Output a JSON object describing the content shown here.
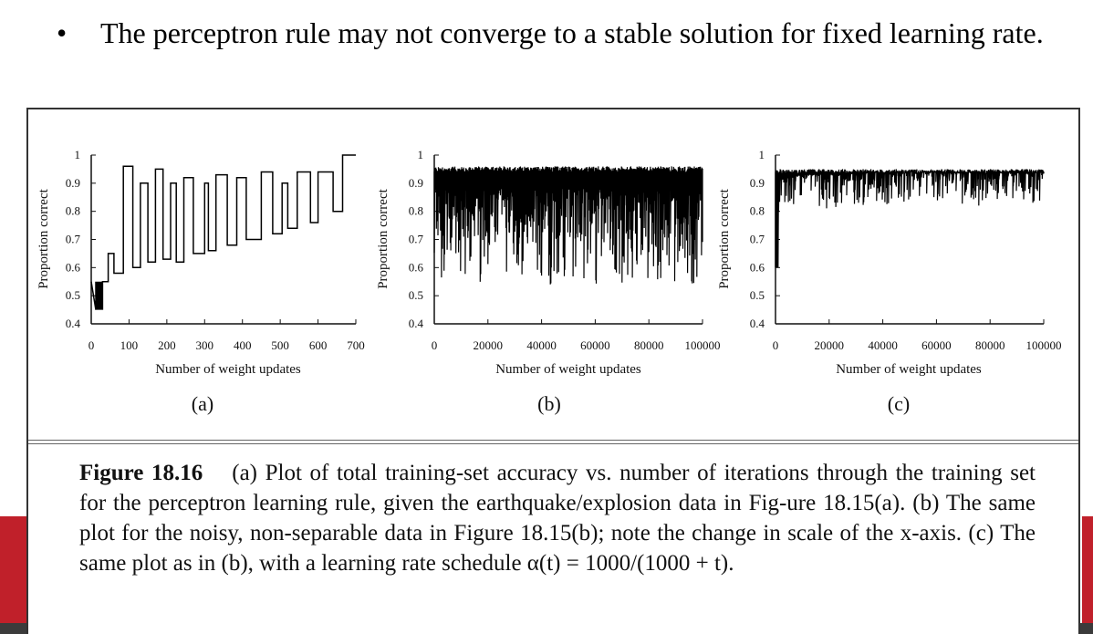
{
  "slide": {
    "bullet_symbol": "•",
    "bullet_text": "The perceptron rule may not converge to a stable solution for fixed learning rate."
  },
  "chart_data": [
    {
      "type": "line",
      "panel_label": "(a)",
      "xlabel": "Number of weight updates",
      "ylabel": "Proportion correct",
      "x_ticks": [
        "0",
        "100",
        "200",
        "300",
        "400",
        "500",
        "600",
        "700"
      ],
      "y_ticks": [
        "0.4",
        "0.5",
        "0.6",
        "0.7",
        "0.8",
        "0.9",
        "1"
      ],
      "xlim": [
        0,
        700
      ],
      "ylim": [
        0.4,
        1.0
      ],
      "series": [
        {
          "name": "training-set accuracy",
          "x": [
            0,
            12,
            12,
            14,
            14,
            16,
            16,
            18,
            18,
            20,
            20,
            22,
            22,
            24,
            24,
            26,
            26,
            28,
            28,
            30,
            30,
            45,
            45,
            60,
            60,
            85,
            85,
            110,
            110,
            130,
            130,
            150,
            150,
            170,
            170,
            190,
            190,
            210,
            210,
            225,
            225,
            245,
            245,
            270,
            270,
            300,
            300,
            310,
            310,
            330,
            330,
            360,
            360,
            385,
            385,
            410,
            410,
            450,
            450,
            480,
            480,
            505,
            505,
            520,
            520,
            545,
            545,
            580,
            580,
            600,
            600,
            640,
            640,
            665,
            665,
            700
          ],
          "y": [
            0.55,
            0.45,
            0.55,
            0.45,
            0.55,
            0.45,
            0.55,
            0.45,
            0.55,
            0.45,
            0.55,
            0.45,
            0.55,
            0.45,
            0.55,
            0.45,
            0.55,
            0.45,
            0.55,
            0.45,
            0.55,
            0.55,
            0.65,
            0.65,
            0.58,
            0.58,
            0.96,
            0.96,
            0.6,
            0.6,
            0.9,
            0.9,
            0.62,
            0.62,
            0.95,
            0.95,
            0.63,
            0.63,
            0.9,
            0.9,
            0.62,
            0.62,
            0.92,
            0.92,
            0.65,
            0.65,
            0.9,
            0.9,
            0.66,
            0.66,
            0.93,
            0.93,
            0.68,
            0.68,
            0.92,
            0.92,
            0.7,
            0.7,
            0.94,
            0.94,
            0.72,
            0.72,
            0.9,
            0.9,
            0.74,
            0.74,
            0.94,
            0.94,
            0.76,
            0.76,
            0.94,
            0.94,
            0.8,
            0.8,
            1.0,
            1.0
          ]
        }
      ]
    },
    {
      "type": "line",
      "panel_label": "(b)",
      "xlabel": "Number of weight updates",
      "ylabel": "Proportion correct",
      "x_ticks": [
        "0",
        "20000",
        "40000",
        "60000",
        "80000",
        "100000"
      ],
      "y_ticks": [
        "0.4",
        "0.5",
        "0.6",
        "0.7",
        "0.8",
        "0.9",
        "1"
      ],
      "xlim": [
        0,
        100000
      ],
      "ylim": [
        0.4,
        1.0
      ],
      "series": [
        {
          "name": "training-set accuracy",
          "x": [
            0,
            10000,
            20000,
            30000,
            40000,
            50000,
            60000,
            70000,
            80000,
            90000,
            100000
          ],
          "y": [
            0.85,
            0.9,
            0.88,
            0.92,
            0.87,
            0.93,
            0.9,
            0.91,
            0.88,
            0.92,
            0.9
          ]
        }
      ]
    },
    {
      "type": "line",
      "panel_label": "(c)",
      "xlabel": "Number of weight updates",
      "ylabel": "Proportion correct",
      "x_ticks": [
        "0",
        "20000",
        "40000",
        "60000",
        "80000",
        "100000"
      ],
      "y_ticks": [
        "0.4",
        "0.5",
        "0.6",
        "0.7",
        "0.8",
        "0.9",
        "1"
      ],
      "xlim": [
        0,
        100000
      ],
      "ylim": [
        0.4,
        1.0
      ],
      "series": [
        {
          "name": "training-set accuracy",
          "x": [
            0,
            500,
            1500,
            5000,
            10000,
            20000,
            40000,
            60000,
            80000,
            100000
          ],
          "y": [
            0.6,
            0.88,
            0.91,
            0.92,
            0.93,
            0.93,
            0.94,
            0.94,
            0.94,
            0.94
          ]
        }
      ]
    }
  ],
  "caption": {
    "label": "Figure 18.16",
    "text": "(a) Plot of total training-set accuracy vs. number of iterations through the training set for the perceptron learning rule, given the earthquake/explosion data in Fig-ure 18.15(a). (b) The same plot for the noisy, non-separable data in Figure 18.15(b); note the change in scale of the x-axis. (c) The same plot as in (b), with a learning rate schedule α(t) = 1000/(1000 + t)."
  }
}
